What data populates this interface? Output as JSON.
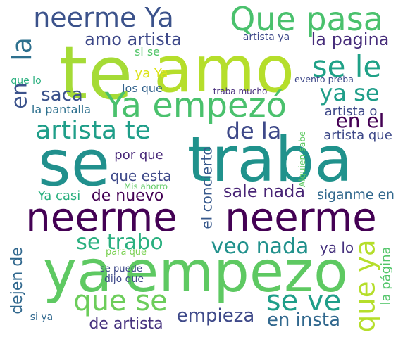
{
  "words": [
    {
      "text": "se",
      "color": "#21908d"
    },
    {
      "text": "traba",
      "color": "#20928c"
    },
    {
      "text": "te",
      "color": "#a5db36"
    },
    {
      "text": "amo",
      "color": "#b5de2b"
    },
    {
      "text": "neerme",
      "color": "#440154"
    },
    {
      "text": "neerme",
      "color": "#440154"
    },
    {
      "text": "ya",
      "color": "#5ec962"
    },
    {
      "text": "empezo",
      "color": "#5ec962"
    },
    {
      "text": "neerme Ya",
      "color": "#3b528b"
    },
    {
      "text": "Que pasa",
      "color": "#4ac16d"
    },
    {
      "text": "Ya empezó",
      "color": "#4ac16d"
    },
    {
      "text": "se le",
      "color": "#1fa187"
    },
    {
      "text": "ya se",
      "color": "#1f9e89"
    },
    {
      "text": "la",
      "color": "#2d708e"
    },
    {
      "text": "en",
      "color": "#3b528b"
    },
    {
      "text": "artista te",
      "color": "#1f9e89"
    },
    {
      "text": "de la",
      "color": "#3e4989"
    },
    {
      "text": "en el",
      "color": "#440154"
    },
    {
      "text": "amo artista",
      "color": "#3e4989"
    },
    {
      "text": "la pagina",
      "color": "#472d7b"
    },
    {
      "text": "saca",
      "color": "#3b528b"
    },
    {
      "text": "que se",
      "color": "#6ccd5a"
    },
    {
      "text": "se ve",
      "color": "#1f9e89"
    },
    {
      "text": "que ya",
      "color": "#b5de2b"
    },
    {
      "text": "veo nada",
      "color": "#21918c"
    },
    {
      "text": "se trabo",
      "color": "#2ab07f"
    },
    {
      "text": "empieza",
      "color": "#3e4989"
    },
    {
      "text": "en insta",
      "color": "#31688e"
    },
    {
      "text": "de artista",
      "color": "#46327e"
    },
    {
      "text": "sale nada",
      "color": "#482475"
    },
    {
      "text": "de nuevo",
      "color": "#440154"
    },
    {
      "text": "dejen de",
      "color": "#31688e"
    },
    {
      "text": "el concierto",
      "color": "#38598c"
    },
    {
      "text": "la página",
      "color": "#52c569"
    },
    {
      "text": "ya lo",
      "color": "#46327e"
    },
    {
      "text": "siganme en",
      "color": "#31688e"
    },
    {
      "text": "que esta",
      "color": "#3e4989"
    },
    {
      "text": "por que",
      "color": "#482878"
    },
    {
      "text": "Ya casi",
      "color": "#2ab07f"
    },
    {
      "text": "artista o",
      "color": "#3e4989"
    },
    {
      "text": "artista que",
      "color": "#3e4989"
    },
    {
      "text": "la pantalla",
      "color": "#2d708e"
    },
    {
      "text": "si se",
      "color": "#52c569"
    },
    {
      "text": "ya Ya",
      "color": "#dce319"
    },
    {
      "text": "los que",
      "color": "#33638d"
    },
    {
      "text": "traba mucho",
      "color": "#472d7b"
    },
    {
      "text": "evento preba",
      "color": "#3e4989"
    },
    {
      "text": "artista ya",
      "color": "#3e4989"
    },
    {
      "text": "que lo",
      "color": "#2ab07f"
    },
    {
      "text": "Mis ahorro",
      "color": "#5ec962"
    },
    {
      "text": "Alguien sabe",
      "color": "#5ec962"
    },
    {
      "text": "para que",
      "color": "#7ad151"
    },
    {
      "text": "se puede",
      "color": "#3e4989"
    },
    {
      "text": "dijo que",
      "color": "#3e4989"
    },
    {
      "text": "si ya",
      "color": "#31688e"
    }
  ]
}
